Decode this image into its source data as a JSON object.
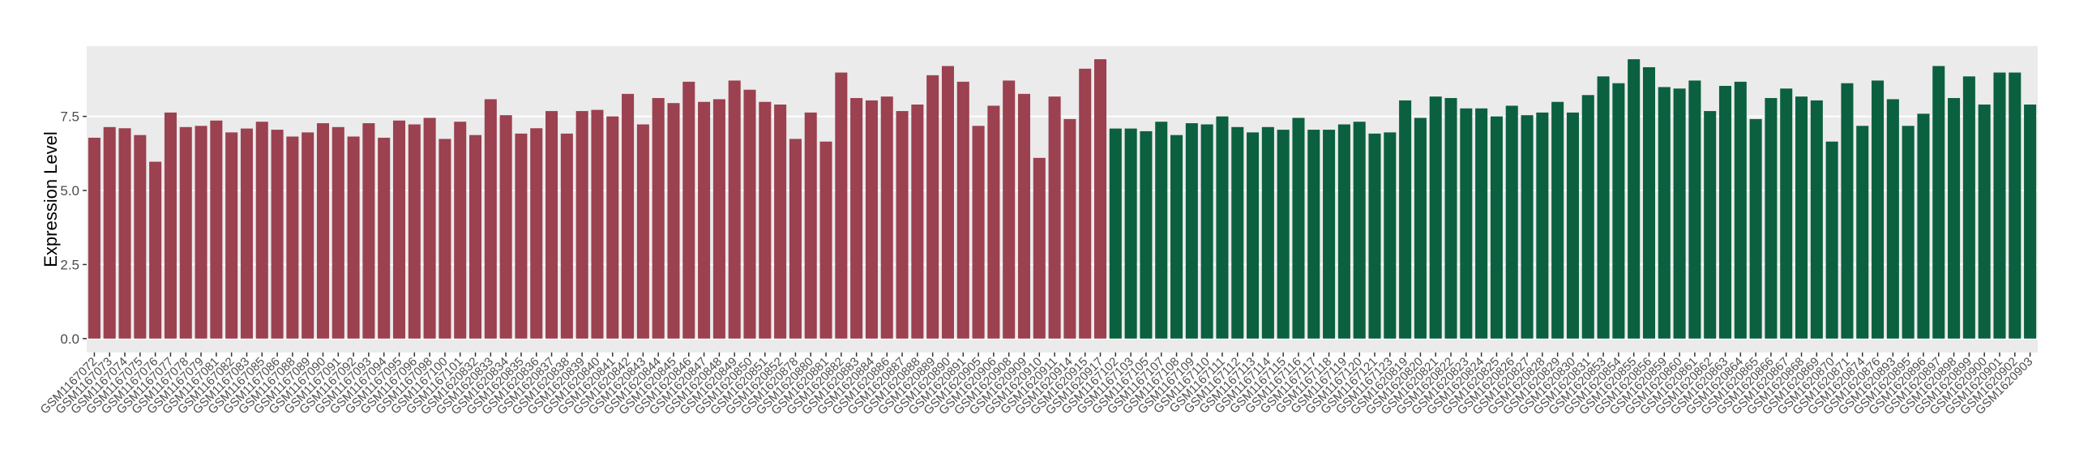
{
  "chart_data": {
    "type": "bar",
    "y_label": "Expression Level",
    "categories": [
      "GSM1167072",
      "GSM1167073",
      "GSM1167074",
      "GSM1167075",
      "GSM1167076",
      "GSM1167077",
      "GSM1167078",
      "GSM1167079",
      "GSM1167081",
      "GSM1167082",
      "GSM1167083",
      "GSM1167085",
      "GSM1167086",
      "GSM1167088",
      "GSM1167089",
      "GSM1167090",
      "GSM1167091",
      "GSM1167092",
      "GSM1167093",
      "GSM1167094",
      "GSM1167095",
      "GSM1167096",
      "GSM1167098",
      "GSM1167100",
      "GSM1167101",
      "GSM1620832",
      "GSM1620833",
      "GSM1620834",
      "GSM1620835",
      "GSM1620836",
      "GSM1620837",
      "GSM1620838",
      "GSM1620839",
      "GSM1620840",
      "GSM1620841",
      "GSM1620842",
      "GSM1620843",
      "GSM1620844",
      "GSM1620845",
      "GSM1620846",
      "GSM1620847",
      "GSM1620848",
      "GSM1620849",
      "GSM1620850",
      "GSM1620851",
      "GSM1620852",
      "GSM1620878",
      "GSM1620880",
      "GSM1620881",
      "GSM1620882",
      "GSM1620883",
      "GSM1620884",
      "GSM1620886",
      "GSM1620887",
      "GSM1620888",
      "GSM1620889",
      "GSM1620890",
      "GSM1620891",
      "GSM1620905",
      "GSM1620906",
      "GSM1620908",
      "GSM1620909",
      "GSM1620910",
      "GSM1620911",
      "GSM1620914",
      "GSM1620915",
      "GSM1620917",
      "GSM1167102",
      "GSM1167103",
      "GSM1167105",
      "GSM1167107",
      "GSM1167108",
      "GSM1167109",
      "GSM1167110",
      "GSM1167111",
      "GSM1167112",
      "GSM1167113",
      "GSM1167114",
      "GSM1167115",
      "GSM1167116",
      "GSM1167117",
      "GSM1167118",
      "GSM1167119",
      "GSM1167120",
      "GSM1167121",
      "GSM1167123",
      "GSM1620819",
      "GSM1620820",
      "GSM1620821",
      "GSM1620822",
      "GSM1620823",
      "GSM1620824",
      "GSM1620825",
      "GSM1620826",
      "GSM1620827",
      "GSM1620828",
      "GSM1620829",
      "GSM1620830",
      "GSM1620831",
      "GSM1620853",
      "GSM1620854",
      "GSM1620855",
      "GSM1620856",
      "GSM1620859",
      "GSM1620860",
      "GSM1620861",
      "GSM1620862",
      "GSM1620863",
      "GSM1620864",
      "GSM1620865",
      "GSM1620866",
      "GSM1620867",
      "GSM1620868",
      "GSM1620869",
      "GSM1620870",
      "GSM1620871",
      "GSM1620874",
      "GSM1620876",
      "GSM1620893",
      "GSM1620895",
      "GSM1620896",
      "GSM1620897",
      "GSM1620898",
      "GSM1620899",
      "GSM1620900",
      "GSM1620901",
      "GSM1620902",
      "GSM1620903"
    ],
    "series": [
      {
        "color": "#9b4150",
        "values": [
          6.78,
          7.14,
          7.1,
          6.87,
          5.97,
          7.63,
          7.14,
          7.18,
          7.36,
          6.96,
          7.09,
          7.32,
          7.05,
          6.82,
          6.96,
          7.27,
          7.14,
          6.82,
          7.27,
          6.78,
          7.36,
          7.23,
          7.45,
          6.74,
          7.32,
          6.87,
          8.08,
          7.54,
          6.92,
          7.1,
          7.68,
          6.92,
          7.68,
          7.72,
          7.5,
          8.26,
          7.23,
          8.12,
          7.95,
          8.67,
          7.99,
          8.08,
          8.71,
          8.4,
          7.99,
          7.9,
          6.74,
          7.63,
          6.65,
          8.98,
          8.12,
          8.04,
          8.17,
          7.68,
          7.9,
          8.89,
          9.2,
          8.67,
          7.18,
          7.86,
          8.71,
          8.26,
          6.1,
          8.17,
          7.41,
          9.11,
          9.43,
          null,
          null,
          null,
          null,
          null,
          null,
          null,
          null,
          null,
          null,
          null,
          null,
          null,
          null,
          null,
          null,
          null,
          null,
          null,
          null,
          null,
          null,
          null,
          null,
          null,
          null,
          null,
          null,
          null,
          null,
          null,
          null,
          null,
          null,
          null,
          null,
          null,
          null,
          null,
          null,
          null,
          null,
          null,
          null,
          null,
          null,
          null,
          null,
          null,
          null,
          null,
          null,
          null,
          null,
          null,
          null,
          null,
          null,
          null,
          null,
          null
        ]
      },
      {
        "color": "#0b6040",
        "values": [
          null,
          null,
          null,
          null,
          null,
          null,
          null,
          null,
          null,
          null,
          null,
          null,
          null,
          null,
          null,
          null,
          null,
          null,
          null,
          null,
          null,
          null,
          null,
          null,
          null,
          null,
          null,
          null,
          null,
          null,
          null,
          null,
          null,
          null,
          null,
          null,
          null,
          null,
          null,
          null,
          null,
          null,
          null,
          null,
          null,
          null,
          null,
          null,
          null,
          null,
          null,
          null,
          null,
          null,
          null,
          null,
          null,
          null,
          null,
          null,
          null,
          null,
          null,
          null,
          null,
          null,
          null,
          7.09,
          7.09,
          7.0,
          7.32,
          6.87,
          7.27,
          7.23,
          7.5,
          7.14,
          6.96,
          7.14,
          7.05,
          7.45,
          7.05,
          7.05,
          7.23,
          7.32,
          6.92,
          6.96,
          8.04,
          7.45,
          8.17,
          8.12,
          7.77,
          7.77,
          7.5,
          7.86,
          7.54,
          7.63,
          7.99,
          7.63,
          8.22,
          8.85,
          8.62,
          9.43,
          9.16,
          8.49,
          8.44,
          8.71,
          7.68,
          8.53,
          8.67,
          7.41,
          8.12,
          8.44,
          8.17,
          8.04,
          6.65,
          8.62,
          7.18,
          8.71,
          8.08,
          7.18,
          7.59,
          9.2,
          8.12,
          8.85,
          7.9,
          8.98,
          8.98,
          7.9
        ]
      }
    ],
    "ylim": [
      -0.47,
      9.87
    ],
    "yticks": [
      {
        "value": 0,
        "label": "0.0"
      },
      2.5,
      {
        "value": 5,
        "label": "5.0"
      },
      7.5
    ],
    "grid": true,
    "background": "#ebebeb"
  }
}
